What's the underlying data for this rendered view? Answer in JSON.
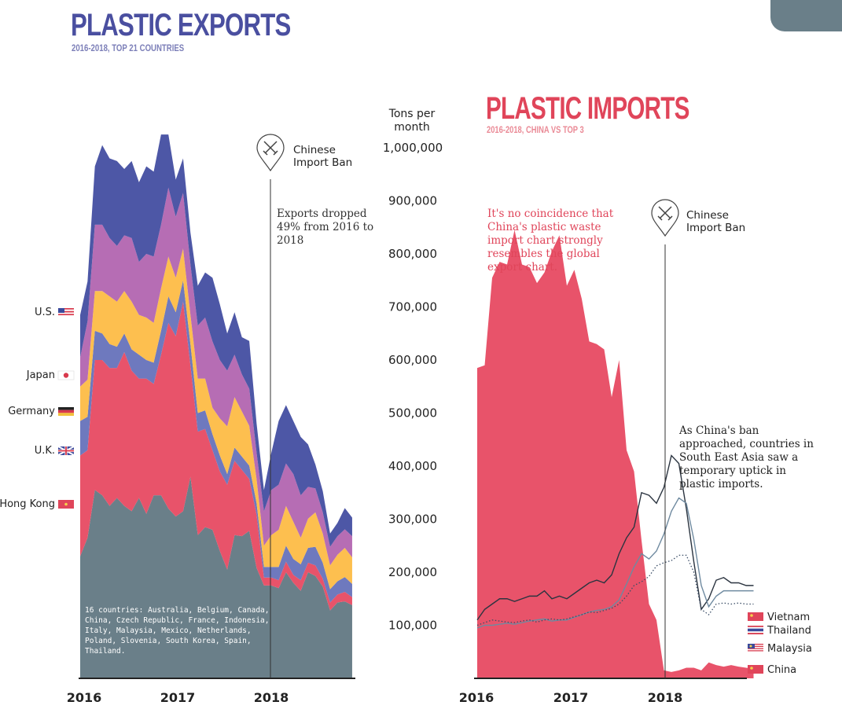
{
  "exports": {
    "title": "PLASTIC EXPORTS",
    "subtitle": "2016-2018, TOP 21 COUNTRIES",
    "ban_label": "Chinese Import Ban",
    "note": "Exports dropped 49% from 2016 to 2018",
    "others_note": "16 countries: Australia, Belgium, Canada, China, Czech Republic, France, Indonesia, Italy, Malaysia, Mexico, Netherlands, Poland, Slovenia, South Korea, Spain, Thailand.",
    "legend": [
      "U.S.",
      "Japan",
      "Germany",
      "U.K.",
      "Hong Kong"
    ]
  },
  "imports": {
    "title": "PLASTIC IMPORTS",
    "subtitle": "2016-2018, CHINA VS TOP 3",
    "ban_label": "Chinese Import Ban",
    "note_pink": "It's no coincidence that China's plastic waste import chart strongly resembles the global export chart.",
    "note_asia": "As China's ban approached, countries in South East Asia saw a temporary uptick in plastic imports.",
    "legend": [
      "Vietnam",
      "Thailand",
      "Malaysia",
      "China"
    ]
  },
  "y_axis_title": "Tons per month",
  "y_ticks": [
    "1,000,000",
    "900,000",
    "800,000",
    "700,000",
    "600,000",
    "500,000",
    "400,000",
    "300,000",
    "200,000",
    "100,000"
  ],
  "x_ticks": [
    "2016",
    "2017",
    "2018"
  ],
  "colors": {
    "others": "#6a7f89",
    "hong_kong": "#e8536a",
    "uk": "#6e79be",
    "germany": "#fdbf4f",
    "japan": "#b66db4",
    "us": "#4d57a6",
    "china": "#e8536a",
    "exports_title": "#4a4fa0",
    "imports_title": "#e0455a"
  },
  "chart_data": [
    {
      "type": "area",
      "title": "PLASTIC EXPORTS",
      "subtitle": "2016-2018, TOP 21 COUNTRIES",
      "ylabel": "Tons per month",
      "ylim": [
        0,
        1000000
      ],
      "x_start": "2016-01",
      "x_step": "month",
      "stacked": true,
      "series": [
        {
          "name": "Other 16",
          "values": [
            230000,
            265000,
            355000,
            345000,
            325000,
            340000,
            325000,
            315000,
            340000,
            310000,
            345000,
            345000,
            320000,
            305000,
            315000,
            380000,
            270000,
            285000,
            280000,
            240000,
            205000,
            270000,
            268000,
            278000,
            208000,
            175000,
            175000,
            170000,
            200000,
            180000,
            165000,
            200000,
            193000,
            173000,
            128000,
            143000,
            145000,
            138000
          ]
        },
        {
          "name": "Hong Kong",
          "values": [
            190000,
            165000,
            245000,
            255000,
            260000,
            245000,
            290000,
            265000,
            225000,
            255000,
            210000,
            265000,
            350000,
            340000,
            395000,
            210000,
            195000,
            185000,
            150000,
            150000,
            160000,
            140000,
            125000,
            98000,
            100000,
            15000,
            15000,
            15000,
            20000,
            15000,
            20000,
            18000,
            20000,
            15000,
            15000,
            15000,
            18000,
            15000
          ]
        },
        {
          "name": "U.K.",
          "values": [
            65000,
            63000,
            55000,
            50000,
            45000,
            40000,
            35000,
            40000,
            45000,
            35000,
            40000,
            45000,
            50000,
            45000,
            40000,
            40000,
            35000,
            35000,
            30000,
            30000,
            20000,
            25000,
            25000,
            25000,
            22000,
            20000,
            20000,
            25000,
            30000,
            30000,
            30000,
            28000,
            35000,
            30000,
            25000,
            25000,
            28000,
            25000
          ]
        },
        {
          "name": "Germany",
          "values": [
            65000,
            70000,
            75000,
            80000,
            90000,
            85000,
            80000,
            90000,
            75000,
            80000,
            75000,
            80000,
            75000,
            65000,
            60000,
            55000,
            65000,
            60000,
            50000,
            70000,
            90000,
            95000,
            85000,
            75000,
            45000,
            40000,
            60000,
            70000,
            75000,
            70000,
            50000,
            55000,
            65000,
            55000,
            45000,
            50000,
            55000,
            50000
          ]
        },
        {
          "name": "Japan",
          "values": [
            55000,
            110000,
            125000,
            125000,
            110000,
            105000,
            105000,
            120000,
            100000,
            120000,
            125000,
            120000,
            130000,
            115000,
            105000,
            95000,
            100000,
            115000,
            125000,
            110000,
            105000,
            80000,
            70000,
            70000,
            50000,
            65000,
            85000,
            85000,
            80000,
            90000,
            80000,
            60000,
            45000,
            40000,
            35000,
            35000,
            35000,
            40000
          ]
        },
        {
          "name": "U.S.",
          "values": [
            80000,
            75000,
            110000,
            150000,
            150000,
            160000,
            125000,
            145000,
            150000,
            165000,
            160000,
            170000,
            100000,
            70000,
            65000,
            60000,
            75000,
            85000,
            120000,
            105000,
            70000,
            80000,
            70000,
            90000,
            55000,
            40000,
            70000,
            120000,
            110000,
            100000,
            110000,
            80000,
            45000,
            40000,
            25000,
            25000,
            40000,
            35000
          ]
        }
      ]
    },
    {
      "type": "area",
      "title": "PLASTIC IMPORTS",
      "subtitle": "2016-2018, CHINA VS TOP 3",
      "ylabel": "Tons per month",
      "ylim": [
        0,
        1000000
      ],
      "x_start": "2016-01",
      "x_step": "month",
      "series": [
        {
          "name": "China",
          "values": [
            585000,
            590000,
            755000,
            785000,
            780000,
            845000,
            780000,
            775000,
            745000,
            765000,
            805000,
            835000,
            740000,
            770000,
            715000,
            635000,
            630000,
            620000,
            530000,
            600000,
            430000,
            390000,
            260000,
            140000,
            110000,
            15000,
            12000,
            15000,
            20000,
            20000,
            15000,
            30000,
            25000,
            22000,
            25000,
            22000,
            20000,
            18000
          ]
        },
        {
          "name": "Vietnam",
          "values": [
            110000,
            130000,
            140000,
            150000,
            150000,
            145000,
            150000,
            155000,
            155000,
            165000,
            150000,
            155000,
            150000,
            160000,
            170000,
            180000,
            185000,
            180000,
            195000,
            235000,
            265000,
            285000,
            350000,
            345000,
            330000,
            360000,
            420000,
            405000,
            320000,
            220000,
            130000,
            150000,
            185000,
            190000,
            180000,
            180000,
            175000,
            175000
          ]
        },
        {
          "name": "Thailand",
          "values": [
            95000,
            100000,
            100000,
            102000,
            104000,
            102000,
            105000,
            108000,
            110000,
            112000,
            108000,
            110000,
            110000,
            115000,
            120000,
            125000,
            128000,
            130000,
            135000,
            148000,
            178000,
            210000,
            235000,
            225000,
            240000,
            272000,
            315000,
            340000,
            330000,
            262000,
            175000,
            135000,
            155000,
            165000,
            165000,
            165000,
            165000,
            165000
          ]
        },
        {
          "name": "Malaysia",
          "values": [
            100000,
            105000,
            110000,
            108000,
            106000,
            105000,
            108000,
            110000,
            106000,
            110000,
            112000,
            110000,
            112000,
            116000,
            120000,
            125000,
            124000,
            128000,
            132000,
            140000,
            155000,
            175000,
            182000,
            192000,
            212000,
            218000,
            222000,
            232000,
            232000,
            200000,
            130000,
            120000,
            140000,
            142000,
            140000,
            142000,
            140000,
            140000
          ]
        }
      ]
    }
  ]
}
